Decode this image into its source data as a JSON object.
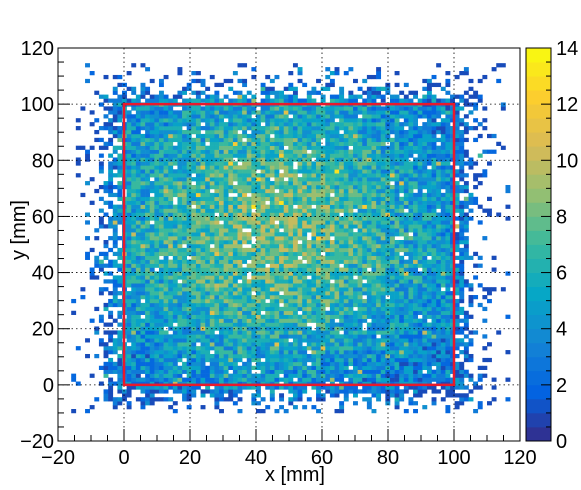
{
  "chart_data": {
    "type": "heatmap",
    "title": "",
    "xlabel": "x [mm]",
    "ylabel": "y [mm]",
    "xlim": [
      -20,
      120
    ],
    "ylim": [
      -20,
      120
    ],
    "x_ticks": [
      "−20",
      "0",
      "20",
      "40",
      "60",
      "80",
      "100",
      "120"
    ],
    "y_ticks": [
      "−20",
      "0",
      "20",
      "40",
      "60",
      "80",
      "100",
      "120"
    ],
    "x_tick_values": [
      -20,
      0,
      20,
      40,
      60,
      80,
      100,
      120
    ],
    "y_tick_values": [
      -20,
      0,
      20,
      40,
      60,
      80,
      100,
      120
    ],
    "grid": true,
    "grid_style": "dotted",
    "bin_size_mm": 1.4,
    "occupied_region": {
      "x": [
        -16,
        117
      ],
      "y": [
        -10,
        114
      ]
    },
    "peak_region_center": [
      45,
      55
    ],
    "peak_region_value": 8,
    "edge_value": 2,
    "signal_box": {
      "x": [
        0,
        100
      ],
      "y": [
        0,
        100
      ],
      "color": "#e8192c"
    },
    "colorbar": {
      "range": [
        0,
        14
      ],
      "ticks": [
        "0",
        "2",
        "4",
        "6",
        "8",
        "10",
        "12",
        "14"
      ],
      "tick_values": [
        0,
        2,
        4,
        6,
        8,
        10,
        12,
        14
      ],
      "colormap": "parula"
    }
  }
}
